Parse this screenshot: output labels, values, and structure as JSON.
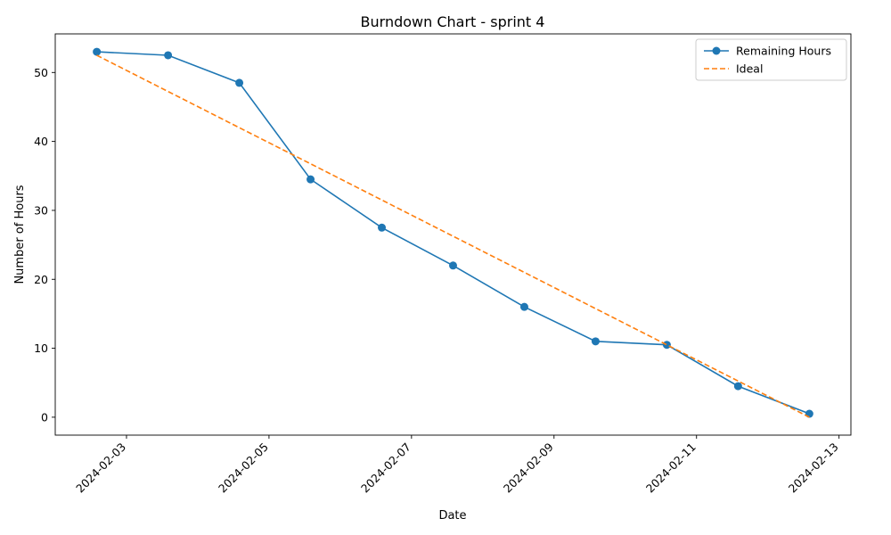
{
  "chart_data": {
    "type": "line",
    "title": "Burndown Chart - sprint 4",
    "xlabel": "Date",
    "ylabel": "Number of Hours",
    "x": [
      "2024-02-02 14:00",
      "2024-02-03 14:00",
      "2024-02-04 14:00",
      "2024-02-05 14:00",
      "2024-02-06 14:00",
      "2024-02-07 14:00",
      "2024-02-08 14:00",
      "2024-02-09 14:00",
      "2024-02-10 14:00",
      "2024-02-11 14:00",
      "2024-02-12 14:00"
    ],
    "series": [
      {
        "name": "Remaining Hours",
        "style": "solid-markers",
        "color": "#1f77b4",
        "values": [
          53,
          52.5,
          48.5,
          34.5,
          27.5,
          22,
          16,
          11,
          10.5,
          4.5,
          0.5
        ]
      },
      {
        "name": "Ideal",
        "style": "dashed",
        "color": "#ff7f0e",
        "values": [
          52.5,
          47.25,
          42,
          36.75,
          31.5,
          26.25,
          21,
          15.75,
          10.5,
          5.25,
          0
        ]
      }
    ],
    "xlim": [
      "2024-02-02 00:00",
      "2024-02-13 04:00"
    ],
    "ylim": [
      -2.6,
      55.6
    ],
    "xticks": [
      "2024-02-03",
      "2024-02-05",
      "2024-02-07",
      "2024-02-09",
      "2024-02-11",
      "2024-02-13"
    ],
    "yticks": [
      0,
      10,
      20,
      30,
      40,
      50
    ],
    "grid": false,
    "legend": "top-right"
  }
}
